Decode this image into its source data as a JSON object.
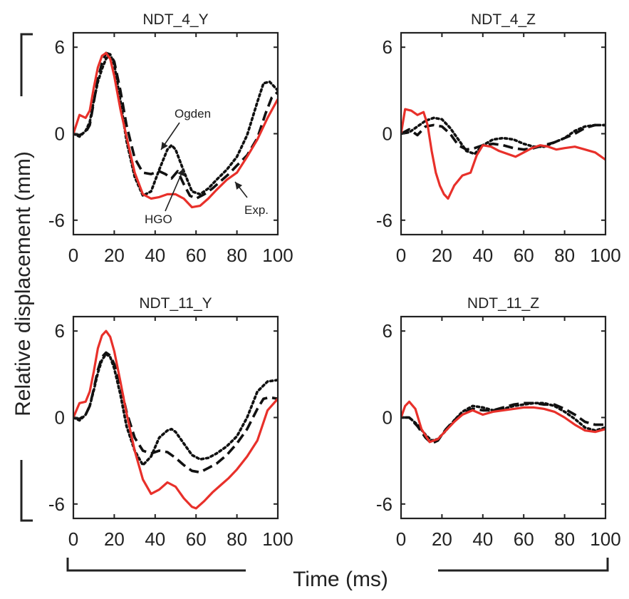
{
  "chart_data": {
    "type": "line",
    "xlabel": "Time (ms)",
    "ylabel": "Relative displacement (mm)",
    "xlim": [
      0,
      100
    ],
    "ylim": [
      -7,
      7
    ],
    "xticks": [
      "0",
      "20",
      "40",
      "60",
      "80",
      "100"
    ],
    "yticks": [
      "-6",
      "0",
      "6"
    ],
    "grid": false,
    "series_styles": [
      {
        "id": "exp",
        "color": "#e8302a",
        "dash": "solid"
      },
      {
        "id": "hgo",
        "color": "#111111",
        "dash": "dashed"
      },
      {
        "id": "ogden",
        "color": "#111111",
        "dash": "dotted"
      }
    ],
    "panels": [
      {
        "title": "NDT_4_Y",
        "series": [
          {
            "id": "exp",
            "x": [
              0,
              3,
              6,
              8,
              10,
              12,
              14,
              16,
              18,
              20,
              23,
              26,
              30,
              34,
              38,
              42,
              46,
              50,
              54,
              58,
              62,
              66,
              70,
              75,
              80,
              85,
              90,
              95,
              100
            ],
            "y": [
              0,
              1.3,
              1.1,
              1.6,
              3.2,
              4.6,
              5.4,
              5.6,
              5.2,
              4,
              1.7,
              -0.2,
              -2.7,
              -4.2,
              -4.5,
              -4.4,
              -4.2,
              -4.2,
              -4.5,
              -5.1,
              -5.0,
              -4.5,
              -3.9,
              -3.2,
              -2.7,
              -1.6,
              -0.4,
              1.1,
              2.4
            ]
          },
          {
            "id": "hgo",
            "x": [
              0,
              3,
              6,
              8,
              10,
              12,
              14,
              16,
              18,
              20,
              23,
              26,
              30,
              34,
              38,
              42,
              45,
              48,
              51,
              54,
              57,
              60,
              64,
              68,
              72,
              76,
              80,
              85,
              90,
              94,
              97,
              100
            ],
            "y": [
              0,
              -0.1,
              0.1,
              0.6,
              2.2,
              3.8,
              4.9,
              5.6,
              5.5,
              5,
              3,
              0.6,
              -1.7,
              -2.7,
              -2.8,
              -2.6,
              -2.8,
              -3.1,
              -2.6,
              -3.5,
              -4.3,
              -4.5,
              -4.2,
              -3.8,
              -3.3,
              -2.8,
              -2.2,
              -1.5,
              -0.3,
              1.4,
              2.5,
              2.9
            ]
          },
          {
            "id": "ogden",
            "x": [
              0,
              3,
              6,
              8,
              10,
              12,
              14,
              16,
              18,
              20,
              23,
              26,
              30,
              34,
              38,
              42,
              46,
              48,
              50,
              54,
              58,
              62,
              66,
              70,
              75,
              80,
              85,
              90,
              93,
              96,
              98,
              100
            ],
            "y": [
              0,
              -0.2,
              0.2,
              0.8,
              2.3,
              3.6,
              4.5,
              5.2,
              5.5,
              4.8,
              2.3,
              -0.5,
              -3,
              -4.3,
              -4,
              -2.5,
              -1.1,
              -0.8,
              -1.1,
              -2.6,
              -4,
              -4.2,
              -3.8,
              -3.2,
              -2.5,
              -1.6,
              -0.1,
              2.2,
              3.5,
              3.6,
              3.3,
              3.0
            ]
          }
        ],
        "annotations": [
          {
            "text": "Ogden"
          },
          {
            "text": "HGO"
          },
          {
            "text": "Exp."
          }
        ]
      },
      {
        "title": "NDT_4_Z",
        "series": [
          {
            "id": "exp",
            "x": [
              0,
              2,
              5,
              8,
              11,
              13,
              15,
              17,
              19,
              21,
              23,
              26,
              30,
              34,
              37,
              40,
              44,
              48,
              52,
              56,
              60,
              64,
              68,
              72,
              76,
              80,
              85,
              90,
              95,
              100
            ],
            "y": [
              0,
              1.7,
              1.6,
              1.3,
              1.5,
              0.6,
              -1.2,
              -2.7,
              -3.6,
              -4.2,
              -4.5,
              -3.6,
              -2.9,
              -2.7,
              -1.5,
              -0.8,
              -0.9,
              -1.2,
              -1.4,
              -1.6,
              -1.3,
              -1.0,
              -0.8,
              -0.9,
              -1.1,
              -1.0,
              -0.9,
              -1.1,
              -1.3,
              -1.8
            ]
          },
          {
            "id": "hgo",
            "x": [
              0,
              4,
              8,
              12,
              16,
              20,
              24,
              28,
              32,
              36,
              40,
              45,
              50,
              55,
              60,
              65,
              70,
              75,
              80,
              85,
              90,
              95,
              100
            ],
            "y": [
              0,
              0.3,
              -0.1,
              0.5,
              0.6,
              0.5,
              0,
              -0.8,
              -1.1,
              -1,
              -0.8,
              -0.7,
              -0.8,
              -1,
              -1.1,
              -1,
              -0.8,
              -0.6,
              -0.3,
              0,
              0.4,
              0.6,
              0.6
            ]
          },
          {
            "id": "ogden",
            "x": [
              0,
              4,
              8,
              12,
              16,
              20,
              24,
              28,
              32,
              36,
              40,
              45,
              50,
              55,
              60,
              65,
              70,
              75,
              80,
              85,
              90,
              95,
              100
            ],
            "y": [
              0,
              0.1,
              0.5,
              0.9,
              1.1,
              1,
              0.4,
              -0.4,
              -1.2,
              -1.4,
              -0.8,
              -0.4,
              -0.3,
              -0.4,
              -0.7,
              -0.9,
              -0.9,
              -0.6,
              -0.3,
              0.2,
              0.5,
              0.6,
              0.6
            ]
          }
        ]
      },
      {
        "title": "NDT_11_Y",
        "series": [
          {
            "id": "exp",
            "x": [
              0,
              3,
              6,
              8,
              10,
              12,
              14,
              16,
              18,
              20,
              23,
              26,
              30,
              34,
              38,
              42,
              46,
              50,
              54,
              58,
              60,
              64,
              68,
              72,
              76,
              80,
              85,
              90,
              95,
              100
            ],
            "y": [
              0,
              1,
              1.1,
              1.8,
              3.2,
              4.8,
              5.7,
              6,
              5.6,
              4.6,
              2.5,
              0.3,
              -2.3,
              -4.3,
              -5.3,
              -5,
              -4.5,
              -4.8,
              -5.6,
              -6.2,
              -6.3,
              -5.8,
              -5.2,
              -4.7,
              -4.2,
              -3.6,
              -2.7,
              -1.6,
              0.5,
              1.3
            ]
          },
          {
            "id": "hgo",
            "x": [
              0,
              3,
              6,
              8,
              10,
              12,
              14,
              16,
              18,
              20,
              23,
              26,
              30,
              34,
              38,
              42,
              46,
              50,
              54,
              58,
              62,
              66,
              70,
              75,
              80,
              85,
              90,
              93,
              96,
              100
            ],
            "y": [
              0,
              -0.1,
              0.2,
              0.8,
              2,
              3.3,
              4.2,
              4.5,
              4.3,
              3.7,
              2.3,
              0.4,
              -1.4,
              -2.3,
              -2.5,
              -2.3,
              -2.4,
              -2.8,
              -3.3,
              -3.7,
              -3.8,
              -3.5,
              -3.2,
              -2.6,
              -1.8,
              -0.8,
              0.6,
              1.3,
              1.4,
              1.3
            ]
          },
          {
            "id": "ogden",
            "x": [
              0,
              3,
              6,
              8,
              10,
              12,
              14,
              16,
              18,
              20,
              23,
              26,
              30,
              34,
              38,
              42,
              46,
              48,
              50,
              54,
              58,
              62,
              66,
              70,
              75,
              80,
              85,
              90,
              95,
              100
            ],
            "y": [
              0,
              -0.2,
              0.2,
              0.8,
              1.9,
              3.1,
              4,
              4.4,
              4.2,
              3.4,
              1.6,
              -0.6,
              -2.3,
              -3.3,
              -2.7,
              -1.4,
              -0.9,
              -0.8,
              -1,
              -1.8,
              -2.6,
              -2.9,
              -2.8,
              -2.5,
              -2,
              -1.3,
              0,
              1.8,
              2.5,
              2.6
            ]
          }
        ]
      },
      {
        "title": "NDT_11_Z",
        "series": [
          {
            "id": "exp",
            "x": [
              0,
              2,
              4,
              7,
              10,
              14,
              18,
              22,
              26,
              30,
              35,
              40,
              45,
              50,
              55,
              60,
              65,
              70,
              75,
              80,
              85,
              90,
              95,
              100
            ],
            "y": [
              0,
              0.8,
              1.1,
              0.6,
              -0.8,
              -1.7,
              -1.5,
              -0.9,
              -0.3,
              0.2,
              0.5,
              0.2,
              0.4,
              0.5,
              0.6,
              0.7,
              0.7,
              0.6,
              0.4,
              0,
              -0.5,
              -0.9,
              -1,
              -0.8
            ]
          },
          {
            "id": "hgo",
            "x": [
              0,
              4,
              8,
              12,
              15,
              18,
              22,
              26,
              30,
              35,
              40,
              45,
              50,
              55,
              60,
              65,
              70,
              75,
              80,
              85,
              90,
              95,
              100
            ],
            "y": [
              0,
              0,
              -0.6,
              -1.4,
              -1.8,
              -1.6,
              -0.8,
              -0.2,
              0.3,
              0.6,
              0.5,
              0.5,
              0.7,
              0.9,
              1,
              1,
              0.9,
              0.9,
              0.6,
              0.2,
              -0.3,
              -0.5,
              -0.5
            ]
          },
          {
            "id": "ogden",
            "x": [
              0,
              4,
              8,
              12,
              15,
              18,
              22,
              26,
              30,
              35,
              40,
              45,
              50,
              55,
              60,
              65,
              70,
              75,
              80,
              85,
              90,
              95,
              100
            ],
            "y": [
              0,
              0,
              -0.5,
              -1.2,
              -1.6,
              -1.5,
              -0.9,
              -0.2,
              0.4,
              0.8,
              0.7,
              0.5,
              0.6,
              0.8,
              0.9,
              1,
              1,
              0.8,
              0.4,
              -0.1,
              -0.7,
              -0.9,
              -0.7
            ]
          }
        ]
      }
    ]
  }
}
